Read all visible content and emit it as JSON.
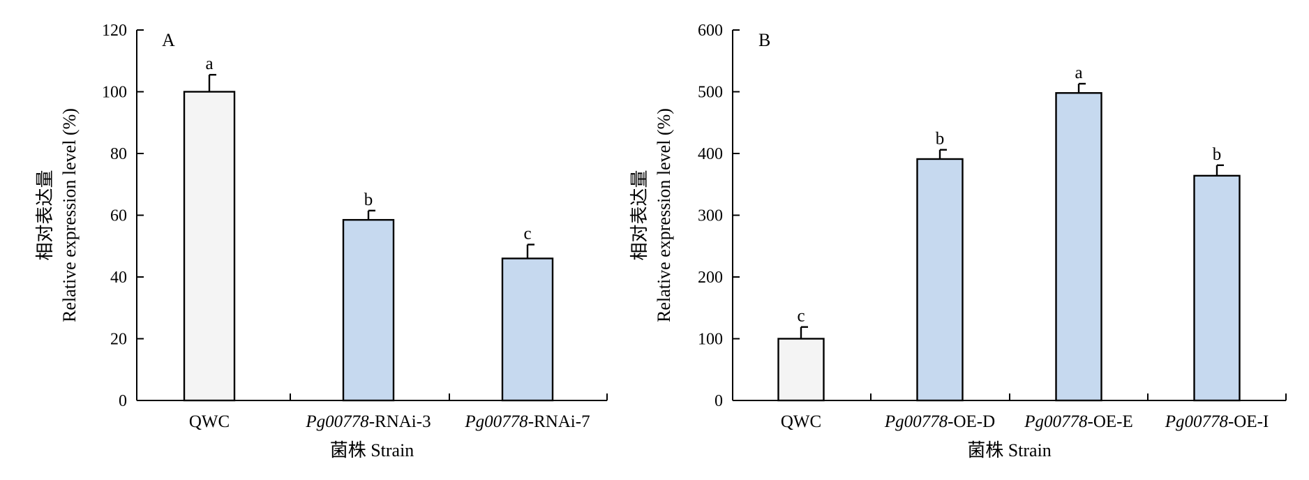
{
  "colors": {
    "control_fill": "#f4f4f4",
    "treatment_fill": "#c6d9ef"
  },
  "chart_data": [
    {
      "type": "bar",
      "panel_label": "A",
      "ylabel_cn": "相对表达量",
      "ylabel": "Relative expression level (%)",
      "xlabel": "菌株 Strain",
      "ylim": [
        0,
        120
      ],
      "yticks": [
        0,
        20,
        40,
        60,
        80,
        100,
        120
      ],
      "categories": [
        {
          "italic": "",
          "rest": "QWC"
        },
        {
          "italic": "Pg00778",
          "rest": "-RNAi-3"
        },
        {
          "italic": "Pg00778",
          "rest": "-RNAi-7"
        }
      ],
      "values": [
        100,
        58.5,
        46
      ],
      "errors": [
        5.5,
        3,
        4.5
      ],
      "significance": [
        "a",
        "b",
        "c"
      ],
      "fill": [
        "control",
        "treatment",
        "treatment"
      ]
    },
    {
      "type": "bar",
      "panel_label": "B",
      "ylabel_cn": "相对表达量",
      "ylabel": "Relative expression level (%)",
      "xlabel": "菌株 Strain",
      "ylim": [
        0,
        600
      ],
      "yticks": [
        0,
        100,
        200,
        300,
        400,
        500,
        600
      ],
      "categories": [
        {
          "italic": "",
          "rest": "QWC"
        },
        {
          "italic": "Pg00778",
          "rest": "-OE-D"
        },
        {
          "italic": "Pg00778",
          "rest": "-OE-E"
        },
        {
          "italic": "Pg00778",
          "rest": "-OE-I"
        }
      ],
      "values": [
        100,
        391,
        498,
        364
      ],
      "errors": [
        19,
        15,
        15,
        17
      ],
      "significance": [
        "c",
        "b",
        "a",
        "b"
      ],
      "fill": [
        "control",
        "treatment",
        "treatment",
        "treatment"
      ]
    }
  ]
}
